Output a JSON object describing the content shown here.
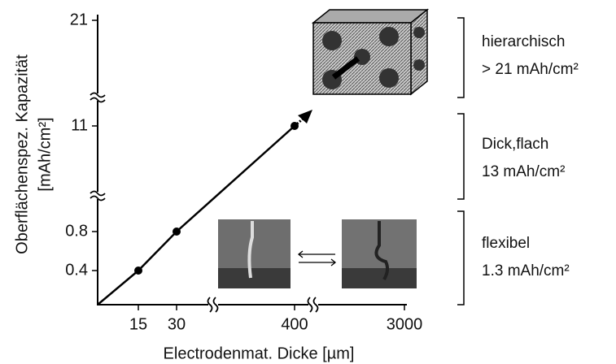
{
  "chart_data": {
    "type": "line",
    "xlabel": "Electrodenmat. Dicke [µm]",
    "ylabel": [
      "Oberflächenspez. Kapazität",
      "[mAh/cm²]"
    ],
    "x": [
      15,
      30,
      400
    ],
    "values": [
      0.4,
      0.8,
      11
    ],
    "color": "#000000",
    "xlim": [
      0,
      3000
    ],
    "xticks": [
      15,
      30,
      400,
      3000
    ],
    "ylim": [
      0,
      21
    ],
    "yticks": [
      0.4,
      0.8,
      11,
      21
    ],
    "annotations": [
      {
        "title": "hierarchisch",
        "text": "> 21 mAh/cm²"
      },
      {
        "title": "Dick,flach",
        "text": "13 mAh/cm²"
      },
      {
        "title": "flexibel",
        "text": "1.3 mAh/cm²"
      }
    ]
  }
}
